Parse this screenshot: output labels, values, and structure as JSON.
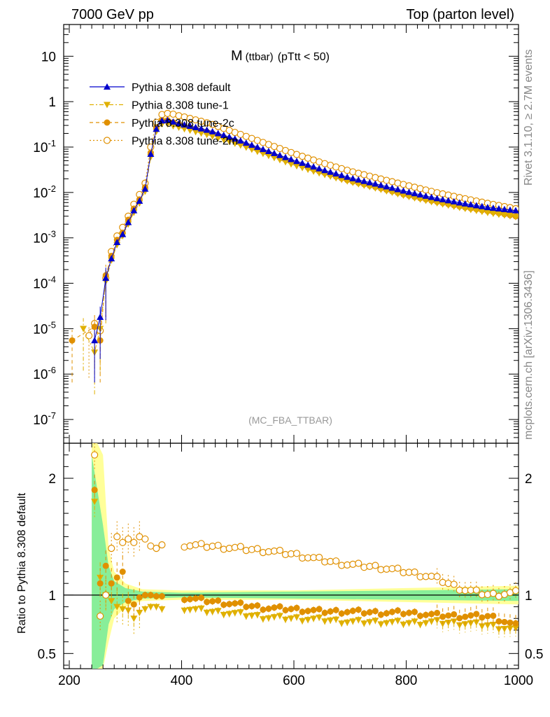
{
  "header": {
    "energy_label": "7000 GeV pp",
    "process_label": "Top (parton level)"
  },
  "side_labels": {
    "rivet": "Rivet 3.1.10, ≥ 2.7M events",
    "mcplots": "mcplots.cern.ch [arXiv:1306.3436]"
  },
  "chart_data": {
    "type": "line",
    "title": "M",
    "title_sub": "(ttbar)",
    "title_cut": "(pTtt < 50)",
    "watermark": "(MC_FBA_TTBAR)",
    "xlabel": "",
    "ylabel": "",
    "ratio_ylabel": "Ratio to Pythia 8.308 default",
    "xlim": [
      190,
      1000
    ],
    "ylim": [
      3e-08,
      50
    ],
    "yscale": "log",
    "ratio_ylim": [
      0.37,
      2.3
    ],
    "x_ticks": [
      "200",
      "400",
      "600",
      "800",
      "1000"
    ],
    "y_ticks": [
      "10",
      "1",
      "10^-1",
      "10^-2",
      "10^-3",
      "10^-4",
      "10^-5",
      "10^-6",
      "10^-7"
    ],
    "ratio_ticks": [
      "2",
      "1",
      "0.5"
    ],
    "legend": [
      {
        "name": "Pythia 8.308 default",
        "color": "#0000cc",
        "marker": "triangle-up",
        "dash": "solid"
      },
      {
        "name": "Pythia 8.308 tune-1",
        "color": "#e0b000",
        "marker": "triangle-down",
        "dash": "dashdot"
      },
      {
        "name": "Pythia 8.308 tune-2c",
        "color": "#e09000",
        "marker": "circle",
        "dash": "dashed"
      },
      {
        "name": "Pythia 8.308 tune-2m",
        "color": "#e09000",
        "marker": "open-circle",
        "dash": "dotted"
      }
    ],
    "series": [
      {
        "name": "Pythia 8.308 default",
        "x": [
          245,
          255,
          265,
          275,
          285,
          295,
          305,
          315,
          325,
          335,
          345,
          355,
          365,
          375,
          385,
          395,
          405,
          450,
          500,
          550,
          600,
          650,
          700,
          750,
          800,
          850,
          900,
          950,
          995
        ],
        "y": [
          5.5e-06,
          1.8e-05,
          0.00013,
          0.00035,
          0.0008,
          0.0012,
          0.0022,
          0.004,
          0.0065,
          0.012,
          0.07,
          0.25,
          0.38,
          0.39,
          0.36,
          0.33,
          0.31,
          0.23,
          0.145,
          0.085,
          0.051,
          0.032,
          0.021,
          0.015,
          0.0105,
          0.0076,
          0.0058,
          0.0046,
          0.004
        ]
      },
      {
        "name": "Pythia 8.308 tune-1",
        "x": [
          225,
          245,
          255,
          265,
          275,
          285,
          295,
          305,
          315,
          325,
          335,
          345,
          355,
          365,
          375,
          385,
          395,
          405,
          450,
          500,
          550,
          600,
          650,
          700,
          750,
          800,
          850,
          900,
          950,
          995
        ],
        "y": [
          1e-05,
          3e-06,
          1e-05,
          0.00011,
          0.00032,
          0.0007,
          0.0011,
          0.002,
          0.0036,
          0.0058,
          0.0105,
          0.06,
          0.22,
          0.32,
          0.32,
          0.29,
          0.27,
          0.25,
          0.18,
          0.115,
          0.068,
          0.04,
          0.0255,
          0.017,
          0.012,
          0.0083,
          0.006,
          0.0045,
          0.0035,
          0.0029
        ]
      },
      {
        "name": "Pythia 8.308 tune-2c",
        "x": [
          205,
          245,
          255,
          265,
          275,
          285,
          295,
          305,
          315,
          325,
          335,
          345,
          355,
          365,
          375,
          385,
          395,
          405,
          450,
          500,
          550,
          600,
          650,
          700,
          750,
          800,
          850,
          900,
          950,
          995
        ],
        "y": [
          5.5e-06,
          1.1e-05,
          5.5e-06,
          0.00015,
          0.0004,
          0.0009,
          0.0013,
          0.0025,
          0.0044,
          0.007,
          0.013,
          0.075,
          0.27,
          0.39,
          0.39,
          0.35,
          0.32,
          0.29,
          0.21,
          0.13,
          0.076,
          0.045,
          0.028,
          0.018,
          0.0128,
          0.0088,
          0.0064,
          0.0048,
          0.0038,
          0.003
        ]
      },
      {
        "name": "Pythia 8.308 tune-2m",
        "x": [
          235,
          245,
          255,
          265,
          275,
          285,
          295,
          305,
          315,
          325,
          335,
          345,
          355,
          365,
          375,
          385,
          395,
          405,
          450,
          500,
          550,
          600,
          650,
          700,
          750,
          800,
          850,
          900,
          950,
          995
        ],
        "y": [
          7e-06,
          1.3e-05,
          9e-06,
          0.00013,
          0.0005,
          0.0011,
          0.0017,
          0.003,
          0.0055,
          0.009,
          0.016,
          0.1,
          0.35,
          0.52,
          0.55,
          0.53,
          0.49,
          0.46,
          0.33,
          0.2,
          0.12,
          0.072,
          0.045,
          0.0295,
          0.0205,
          0.0145,
          0.0102,
          0.0075,
          0.0056,
          0.0044
        ]
      }
    ],
    "ratio_series": [
      {
        "name": "Pythia 8.308 tune-1",
        "x": [
          245,
          255,
          265,
          275,
          285,
          295,
          305,
          315,
          325,
          335,
          345,
          355,
          365,
          400,
          450,
          500,
          550,
          600,
          650,
          700,
          750,
          800,
          850,
          900,
          950,
          995
        ],
        "y": [
          1.8,
          1.15,
          1.0,
          0.95,
          0.9,
          0.88,
          0.87,
          0.8,
          0.85,
          0.88,
          0.9,
          0.9,
          0.88,
          0.89,
          0.86,
          0.84,
          0.81,
          0.8,
          0.79,
          0.77,
          0.77,
          0.76,
          0.77,
          0.76,
          0.74,
          0.7
        ]
      },
      {
        "name": "Pythia 8.308 tune-2c",
        "x": [
          245,
          255,
          265,
          275,
          285,
          295,
          305,
          315,
          325,
          335,
          345,
          355,
          365,
          400,
          450,
          500,
          550,
          600,
          650,
          700,
          750,
          800,
          850,
          900,
          950,
          995
        ],
        "y": [
          1.9,
          1.1,
          1.25,
          1.1,
          1.15,
          1.2,
          0.95,
          0.92,
          0.98,
          1.0,
          1.0,
          0.99,
          0.99,
          0.98,
          0.95,
          0.92,
          0.89,
          0.88,
          0.86,
          0.86,
          0.85,
          0.85,
          0.83,
          0.82,
          0.82,
          0.74
        ]
      },
      {
        "name": "Pythia 8.308 tune-2m",
        "x": [
          245,
          255,
          265,
          275,
          285,
          295,
          305,
          315,
          325,
          335,
          345,
          355,
          365,
          400,
          450,
          500,
          550,
          600,
          650,
          700,
          750,
          800,
          850,
          900,
          950,
          995
        ],
        "y": [
          2.2,
          0.82,
          1.0,
          1.4,
          1.5,
          1.45,
          1.48,
          1.45,
          1.5,
          1.48,
          1.42,
          1.4,
          1.43,
          1.43,
          1.42,
          1.4,
          1.38,
          1.35,
          1.3,
          1.26,
          1.24,
          1.2,
          1.15,
          1.05,
          1.0,
          1.02
        ]
      }
    ]
  }
}
